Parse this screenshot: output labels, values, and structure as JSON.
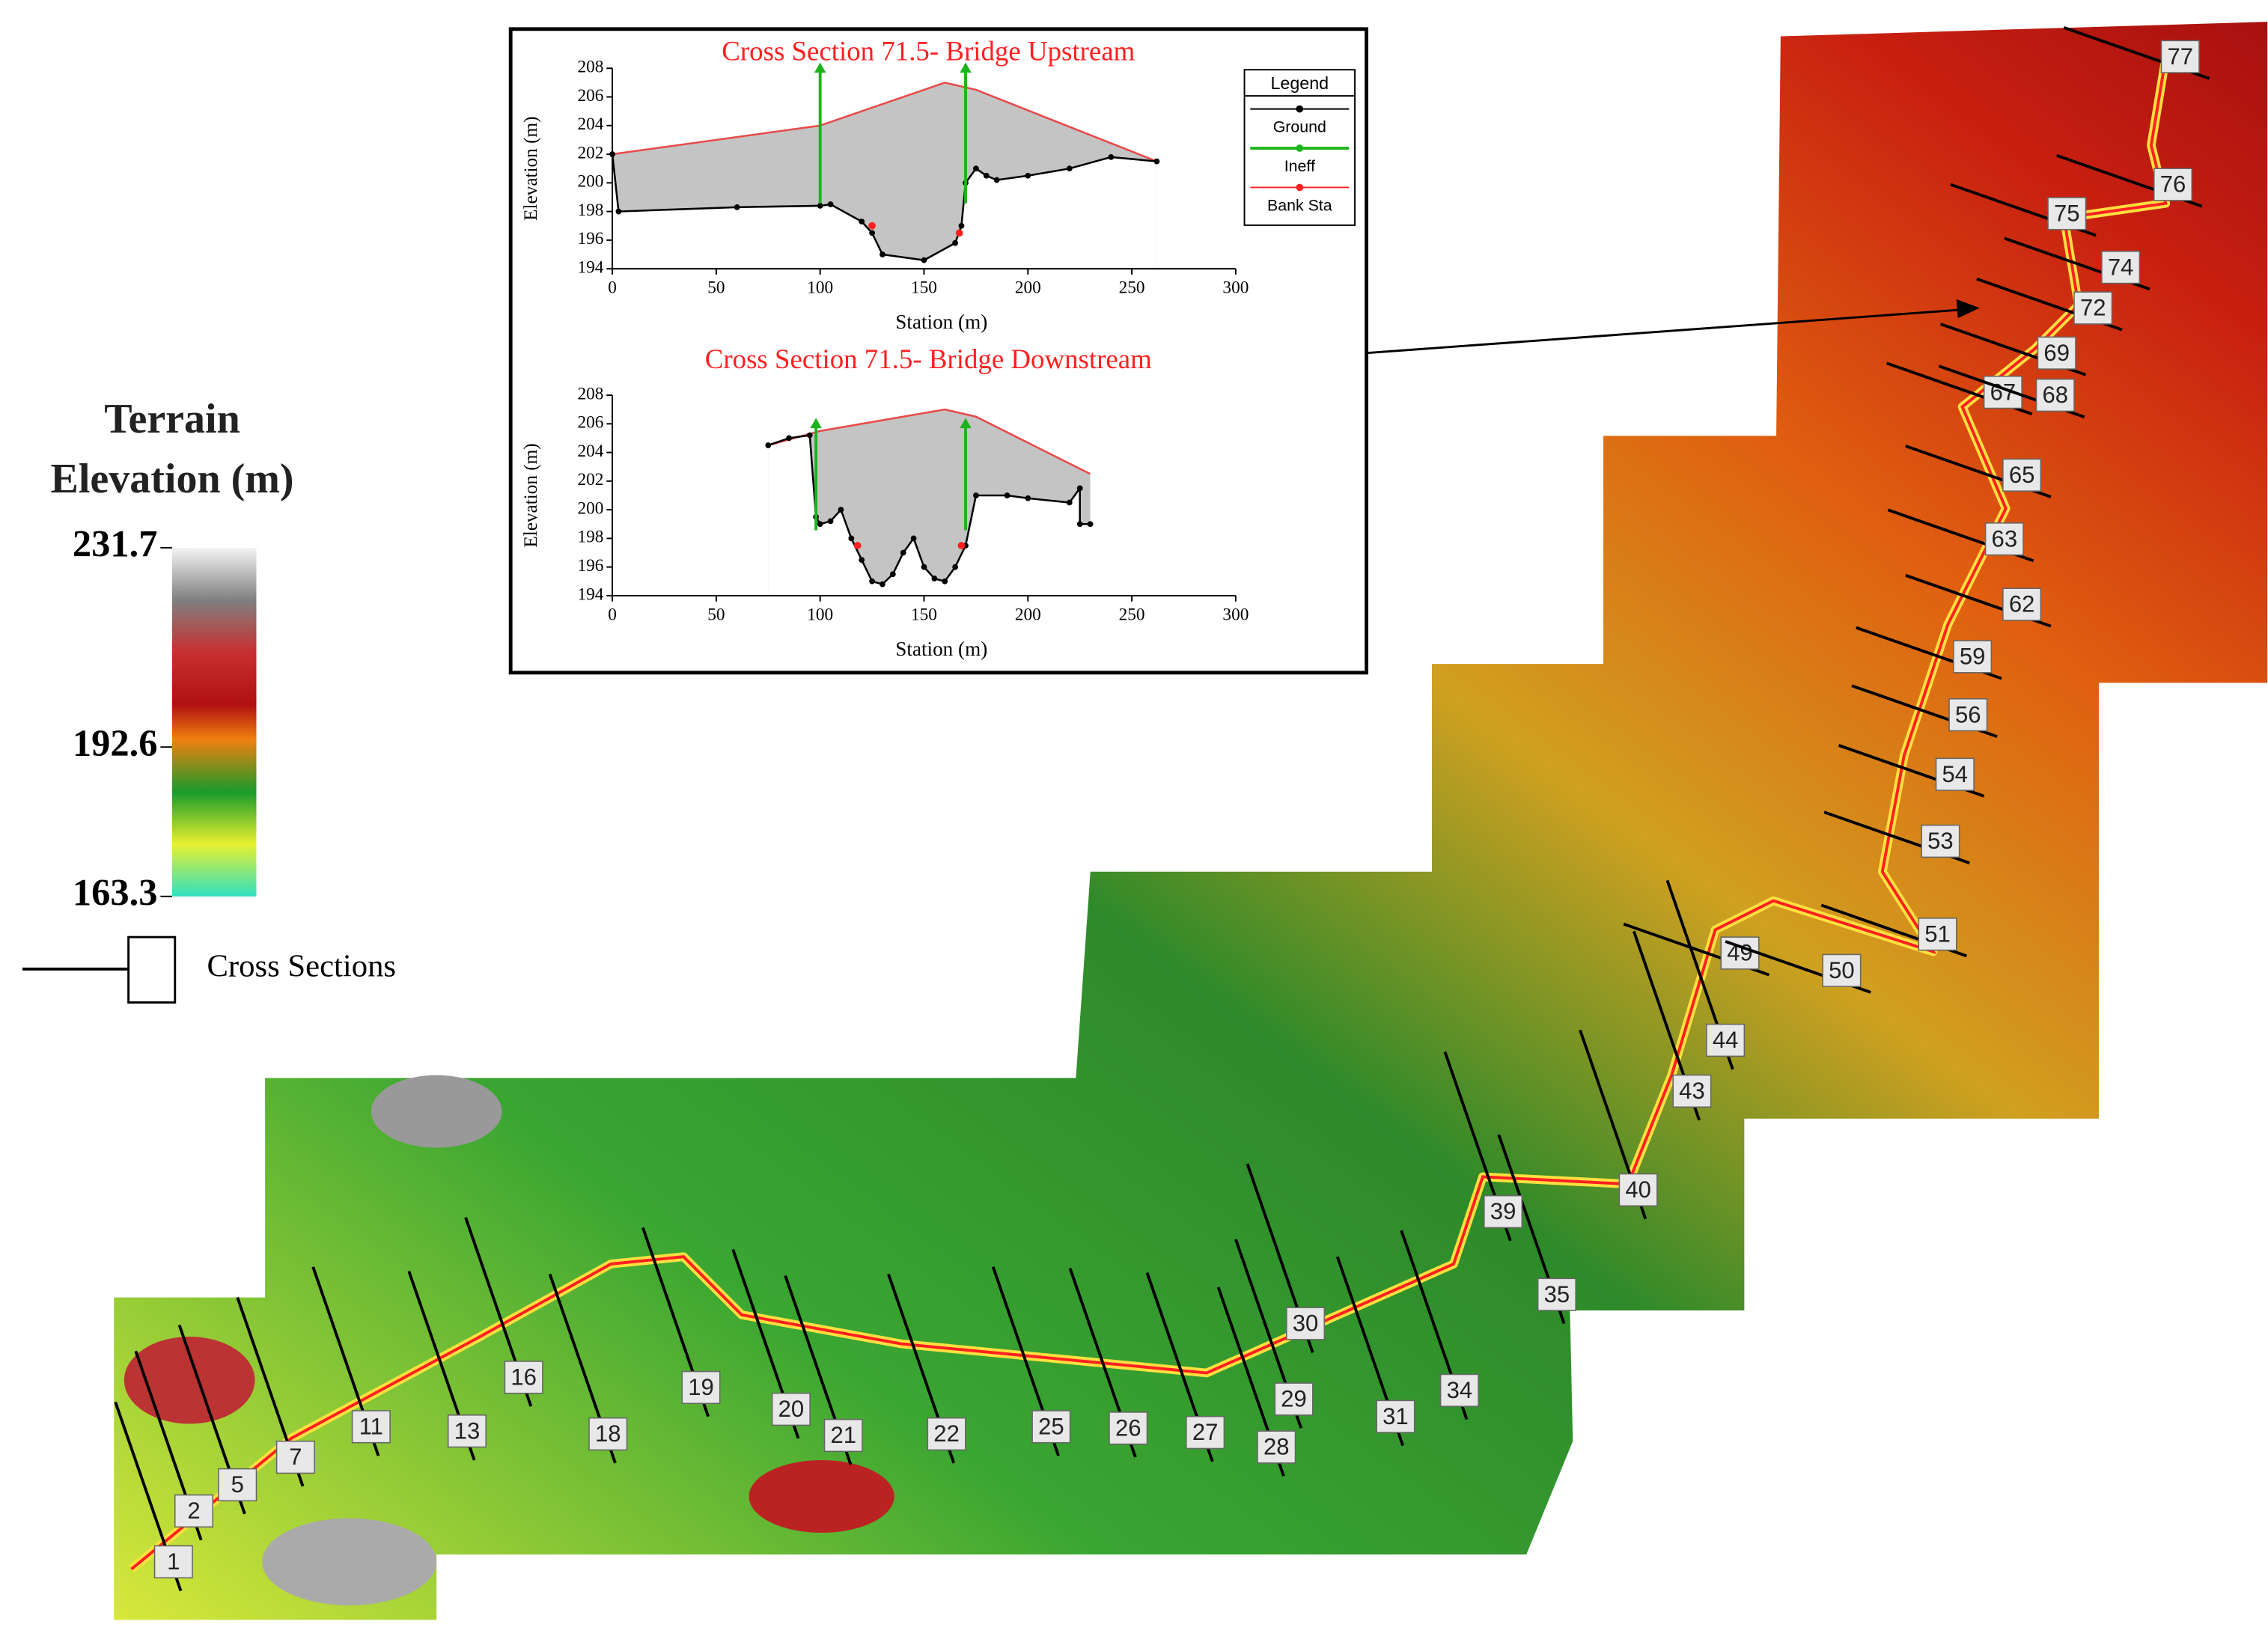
{
  "chart_data": [
    {
      "type": "line",
      "title": "Cross Section 71.5- Bridge Upstream",
      "x_label": "Station (m)",
      "y_label": "Elevation (m)",
      "xlim": [
        0,
        300
      ],
      "ylim": [
        194,
        208
      ],
      "xticks": [
        0,
        50,
        100,
        150,
        200,
        250,
        300
      ],
      "yticks": [
        194,
        196,
        198,
        200,
        202,
        204,
        206,
        208
      ],
      "legend_title": "Legend",
      "series": [
        {
          "color": "#e84a4a",
          "x": [
            0,
            100,
            160,
            175,
            262
          ],
          "values": [
            202,
            204,
            207,
            206.5,
            201.5
          ]
        },
        {
          "name": "Ground",
          "color": "#000000",
          "x": [
            0,
            3,
            60,
            100,
            105,
            120,
            125,
            130,
            150,
            165,
            168,
            170,
            175,
            180,
            185,
            200,
            220,
            240,
            262
          ],
          "values": [
            202,
            198,
            198.3,
            198.4,
            198.5,
            197.3,
            196.5,
            195,
            194.6,
            195.8,
            197,
            200,
            201,
            200.5,
            200.2,
            200.5,
            201,
            201.8,
            201.5
          ]
        },
        {
          "name": "Ineff",
          "color": "#1db31d",
          "x": [
            100,
            170
          ],
          "values": [
            208,
            208
          ]
        },
        {
          "name": "Bank Sta",
          "color": "#ff2020",
          "x": [
            125,
            167
          ],
          "values": [
            197,
            196.5
          ]
        }
      ]
    },
    {
      "type": "line",
      "title": "Cross Section 71.5- Bridge Downstream",
      "x_label": "Station (m)",
      "y_label": "Elevation (m)",
      "xlim": [
        0,
        300
      ],
      "ylim": [
        194,
        208
      ],
      "xticks": [
        0,
        50,
        100,
        150,
        200,
        250,
        300
      ],
      "yticks": [
        194,
        196,
        198,
        200,
        202,
        204,
        206,
        208
      ],
      "series": [
        {
          "color": "#e84a4a",
          "x": [
            75,
            100,
            160,
            175,
            230
          ],
          "values": [
            204.5,
            205.5,
            207,
            206.5,
            202.5
          ]
        },
        {
          "color": "#000000",
          "x": [
            75,
            85,
            95,
            98,
            100,
            105,
            110,
            115,
            120,
            125,
            130,
            135,
            140,
            145,
            150,
            155,
            160,
            165,
            170,
            175,
            190,
            200,
            220,
            225,
            225,
            230
          ],
          "values": [
            204.5,
            205,
            205.2,
            199.5,
            199,
            199.2,
            200,
            198,
            196.5,
            195,
            194.8,
            195.5,
            197,
            198,
            196,
            195.2,
            195,
            196,
            197.5,
            201,
            201,
            200.8,
            200.5,
            201.5,
            199,
            199
          ]
        },
        {
          "color": "#1db31d",
          "x": [
            98,
            170
          ],
          "values": [
            206,
            206
          ]
        },
        {
          "color": "#ff2020",
          "x": [
            118,
            168
          ],
          "values": [
            197.5,
            197.5
          ]
        }
      ]
    }
  ],
  "legend": {
    "title": "Terrain Elevation (m)",
    "lim": [
      163.3,
      231.7
    ],
    "ticks": [
      231.7,
      192.6,
      163.3
    ],
    "cross_sections": "Cross Sections"
  },
  "map": {
    "sections": [
      "1",
      "2",
      "5",
      "7",
      "11",
      "13",
      "16",
      "18",
      "19",
      "20",
      "21",
      "22",
      "25",
      "26",
      "27",
      "28",
      "29",
      "30",
      "31",
      "34",
      "35",
      "39",
      "40",
      "43",
      "44",
      "49",
      "50",
      "51",
      "53",
      "54",
      "56",
      "59",
      "62",
      "63",
      "65",
      "67",
      "68",
      "69",
      "72",
      "74",
      "75",
      "76",
      "77"
    ]
  }
}
